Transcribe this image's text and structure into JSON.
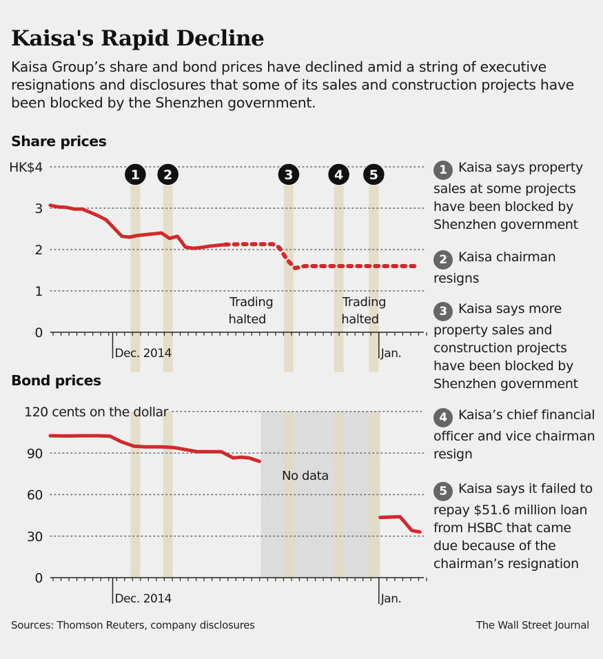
{
  "header": {
    "title": "Kaisa's Rapid Decline",
    "subtitle": "Kaisa Group’s share and bond prices have declined amid a string of executive resignations and disclosures that some of its sales and construction projects have been blocked by the Shenzhen government."
  },
  "footer": {
    "sources": "Sources: Thomson Reuters, company disclosures",
    "credit": "The Wall Street Journal"
  },
  "events": [
    {
      "number": "1",
      "text": "Kaisa says property sales at some projects have been blocked by Shenzhen government"
    },
    {
      "number": "2",
      "text": "Kaisa chairman resigns"
    },
    {
      "number": "3",
      "text": "Kaisa says more property sales and construction projects have been blocked by Shenzhen government"
    },
    {
      "number": "4",
      "text": "Kaisa’s chief financial officer and vice chairman resign"
    },
    {
      "number": "5",
      "text": "Kaisa says it failed to repay $51.6 million loan from HSBC that came due because of the chairman’s resignation"
    }
  ],
  "colors": {
    "line": "#d12a2a",
    "event_bar": "#e2d9c3",
    "no_data": "#dcdcdc",
    "badge_chart": "#111111",
    "badge_note": "#666666",
    "grid": "#666666"
  },
  "chart_data": [
    {
      "type": "line",
      "title": "Share prices",
      "ylabel": "HK$",
      "ylim": [
        0,
        4
      ],
      "yticks": [
        0,
        1,
        2,
        3,
        4
      ],
      "ytick_labels": [
        "0",
        "1",
        "2",
        "3",
        "HK$4"
      ],
      "x_index_range": [
        0,
        47
      ],
      "x_labels": [
        {
          "index": 7.5,
          "label": "Dec. 2014"
        },
        {
          "index": 41,
          "label": "Jan."
        }
      ],
      "event_markers": [
        {
          "index": 10.7,
          "label": "1"
        },
        {
          "index": 14.8,
          "label": "2"
        },
        {
          "index": 30,
          "label": "3"
        },
        {
          "index": 36.3,
          "label": "4"
        },
        {
          "index": 40.7,
          "label": "5"
        }
      ],
      "annotations": [
        {
          "index": 25.3,
          "text": "Trading halted"
        },
        {
          "index": 39.5,
          "text": "Trading halted"
        }
      ],
      "series": [
        {
          "name": "Share price (traded)",
          "style": "solid",
          "x": [
            0,
            1,
            2,
            3,
            4,
            5,
            6,
            7,
            8,
            9,
            10,
            11,
            12,
            13,
            14,
            15,
            16,
            17,
            18,
            19,
            20,
            21,
            22
          ],
          "y": [
            3.07,
            3.03,
            3.02,
            2.98,
            2.98,
            2.9,
            2.82,
            2.72,
            2.52,
            2.32,
            2.3,
            2.34,
            2.36,
            2.38,
            2.4,
            2.27,
            2.32,
            2.06,
            2.03,
            2.05,
            2.08,
            2.1,
            2.12
          ]
        },
        {
          "name": "Share price (halted)",
          "style": "dotted",
          "x": [
            22,
            24,
            26,
            28,
            28.8,
            29.8,
            30.8,
            32,
            34,
            36,
            38,
            40,
            42,
            44,
            46.5
          ],
          "y": [
            2.12,
            2.13,
            2.13,
            2.13,
            2.05,
            1.75,
            1.55,
            1.6,
            1.6,
            1.6,
            1.6,
            1.6,
            1.6,
            1.6,
            1.6
          ]
        }
      ]
    },
    {
      "type": "line",
      "title": "Bond prices",
      "ylabel": "cents on the dollar",
      "ylim": [
        0,
        120
      ],
      "yticks": [
        0,
        30,
        60,
        90,
        120
      ],
      "ytick_labels": [
        "0",
        "30",
        "60",
        "90",
        "120 cents on the dollar"
      ],
      "x_index_range": [
        0,
        47
      ],
      "x_labels": [
        {
          "index": 7.5,
          "label": "Dec. 2014"
        },
        {
          "index": 41,
          "label": "Jan."
        }
      ],
      "event_markers": [
        {
          "index": 10.7
        },
        {
          "index": 14.8
        },
        {
          "index": 30
        },
        {
          "index": 36.3
        },
        {
          "index": 40.7
        }
      ],
      "no_data_range": [
        26.5,
        41.5
      ],
      "annotations": [
        {
          "index": 32,
          "text": "No data"
        }
      ],
      "series": [
        {
          "name": "Bond price",
          "style": "solid",
          "x": [
            0,
            2,
            4,
            6,
            7.5,
            9,
            10.5,
            12,
            14,
            15.5,
            17,
            18.5,
            20,
            21.5,
            23,
            24,
            25,
            26.3
          ],
          "y": [
            102.5,
            102.3,
            102.5,
            102.5,
            102.2,
            98,
            95,
            94.5,
            94.5,
            94,
            92.5,
            91,
            91,
            91,
            86.5,
            87,
            86.5,
            84
          ]
        },
        {
          "name": "Bond price (after)",
          "style": "solid",
          "x": [
            41.5,
            44,
            45.5,
            46.5
          ],
          "y": [
            43.5,
            44,
            34,
            33
          ]
        }
      ]
    }
  ]
}
